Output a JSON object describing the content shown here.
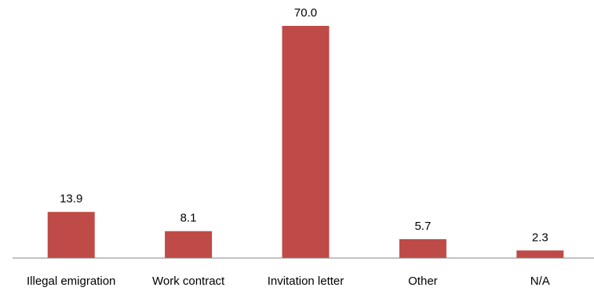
{
  "chart_data": {
    "type": "bar",
    "title": "",
    "xlabel": "",
    "ylabel": "",
    "categories": [
      "Illegal emigration",
      "Work contract",
      "Invitation letter",
      "Other",
      "N/A"
    ],
    "values": [
      13.9,
      8.1,
      70.0,
      5.7,
      2.3
    ],
    "value_labels": [
      "13.9",
      "8.1",
      "70.0",
      "5.7",
      "2.3"
    ],
    "ylim": [
      0,
      70
    ],
    "grid": false,
    "legend": "none",
    "bar_color": "#be4b48",
    "axis_color": "#868686"
  }
}
